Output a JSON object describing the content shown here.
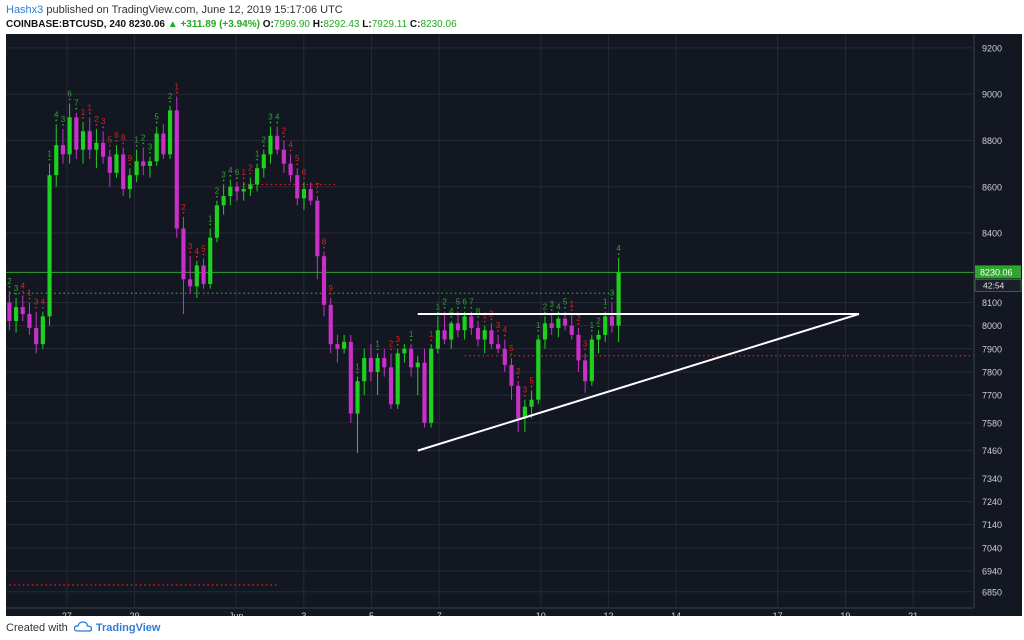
{
  "header": {
    "author": "Hashx3",
    "published_text": "published on TradingView.com, June 12, 2019 15:17:06 UTC",
    "symbol": "COINBASE:BTCUSD, 240",
    "last": "8230.06",
    "change_arrow": "▲",
    "change": "+311.89 (+3.94%)",
    "o_label": "O:",
    "o_value": "7999.90",
    "h_label": "H:",
    "h_value": "8292.43",
    "l_label": "L:",
    "l_value": "7929.11",
    "c_label": "C:",
    "c_value": "8230.06"
  },
  "footer": {
    "created_with": "Created with",
    "brand": "TradingView",
    "logo_icon": "tradingview-cloud-icon"
  },
  "colors": {
    "background": "#131722",
    "grid": "#252a36",
    "up": "#1fd11f",
    "down": "#c830c8",
    "td_up": "#2ea52e",
    "td_down": "#e02020",
    "price_line": "#2ea52e",
    "axis_text": "#d0d0d0",
    "trendline": "#ffffff"
  },
  "chart_data": {
    "type": "candlestick",
    "ylim": [
      6780,
      9260
    ],
    "y_ticks": [
      9200,
      9000,
      8800,
      8600,
      8400,
      8230,
      8100,
      8000,
      7900,
      7800,
      7700,
      7580,
      7460,
      7340,
      7240,
      7140,
      7040,
      6940,
      6850
    ],
    "x_ticks": [
      {
        "label": "27",
        "day": 27
      },
      {
        "label": "29",
        "day": 29
      },
      {
        "label": "Jun",
        "day": 32
      },
      {
        "label": "3",
        "day": 34
      },
      {
        "label": "5",
        "day": 36
      },
      {
        "label": "7",
        "day": 38
      },
      {
        "label": "10",
        "day": 41
      },
      {
        "label": "12",
        "day": 43
      },
      {
        "label": "14",
        "day": 45
      },
      {
        "label": "17",
        "day": 48
      },
      {
        "label": "19",
        "day": 50
      },
      {
        "label": "21",
        "day": 52
      }
    ],
    "x_range_days": [
      25.2,
      53.8
    ],
    "last_price_label": "8230.06",
    "countdown_label": "42:54",
    "candles": [
      [
        8100,
        8150,
        7980,
        8020
      ],
      [
        8020,
        8120,
        7970,
        8080
      ],
      [
        8080,
        8130,
        8020,
        8050
      ],
      [
        8050,
        8100,
        7960,
        7990
      ],
      [
        7990,
        8060,
        7880,
        7920
      ],
      [
        7920,
        8060,
        7900,
        8040
      ],
      [
        8040,
        8700,
        8000,
        8650
      ],
      [
        8650,
        8870,
        8600,
        8780
      ],
      [
        8780,
        8850,
        8700,
        8740
      ],
      [
        8740,
        8960,
        8700,
        8900
      ],
      [
        8900,
        8920,
        8720,
        8760
      ],
      [
        8760,
        8880,
        8700,
        8840
      ],
      [
        8840,
        8900,
        8720,
        8760
      ],
      [
        8760,
        8850,
        8680,
        8790
      ],
      [
        8790,
        8840,
        8700,
        8730
      ],
      [
        8730,
        8760,
        8600,
        8660
      ],
      [
        8660,
        8780,
        8640,
        8740
      ],
      [
        8740,
        8770,
        8560,
        8590
      ],
      [
        8590,
        8680,
        8550,
        8650
      ],
      [
        8650,
        8760,
        8620,
        8710
      ],
      [
        8710,
        8770,
        8650,
        8690
      ],
      [
        8690,
        8730,
        8640,
        8710
      ],
      [
        8710,
        8860,
        8690,
        8830
      ],
      [
        8830,
        8870,
        8720,
        8740
      ],
      [
        8740,
        8950,
        8720,
        8930
      ],
      [
        8930,
        8990,
        8380,
        8420
      ],
      [
        8420,
        8470,
        8050,
        8200
      ],
      [
        8200,
        8300,
        8140,
        8170
      ],
      [
        8170,
        8280,
        8120,
        8260
      ],
      [
        8260,
        8290,
        8160,
        8180
      ],
      [
        8180,
        8420,
        8160,
        8380
      ],
      [
        8380,
        8540,
        8360,
        8520
      ],
      [
        8520,
        8610,
        8480,
        8560
      ],
      [
        8560,
        8630,
        8520,
        8600
      ],
      [
        8600,
        8620,
        8540,
        8580
      ],
      [
        8580,
        8620,
        8540,
        8590
      ],
      [
        8590,
        8640,
        8560,
        8610
      ],
      [
        8610,
        8700,
        8580,
        8680
      ],
      [
        8680,
        8760,
        8640,
        8740
      ],
      [
        8740,
        8860,
        8700,
        8820
      ],
      [
        8820,
        8860,
        8740,
        8760
      ],
      [
        8760,
        8800,
        8660,
        8700
      ],
      [
        8700,
        8740,
        8620,
        8650
      ],
      [
        8650,
        8680,
        8520,
        8550
      ],
      [
        8550,
        8620,
        8500,
        8590
      ],
      [
        8590,
        8620,
        8520,
        8540
      ],
      [
        8540,
        8560,
        8200,
        8300
      ],
      [
        8300,
        8320,
        8040,
        8090
      ],
      [
        8090,
        8120,
        7880,
        7920
      ],
      [
        7920,
        7960,
        7840,
        7900
      ],
      [
        7900,
        7960,
        7880,
        7930
      ],
      [
        7930,
        7960,
        7580,
        7620
      ],
      [
        7620,
        7780,
        7450,
        7760
      ],
      [
        7760,
        7900,
        7700,
        7860
      ],
      [
        7860,
        7920,
        7760,
        7800
      ],
      [
        7800,
        7880,
        7700,
        7860
      ],
      [
        7860,
        7900,
        7780,
        7820
      ],
      [
        7820,
        7880,
        7640,
        7660
      ],
      [
        7660,
        7900,
        7640,
        7880
      ],
      [
        7880,
        7920,
        7840,
        7900
      ],
      [
        7900,
        7920,
        7780,
        7820
      ],
      [
        7820,
        7870,
        7700,
        7840
      ],
      [
        7840,
        7900,
        7560,
        7580
      ],
      [
        7580,
        7920,
        7560,
        7900
      ],
      [
        7900,
        8040,
        7880,
        7980
      ],
      [
        7980,
        8060,
        7920,
        7940
      ],
      [
        7940,
        8020,
        7900,
        8010
      ],
      [
        8010,
        8060,
        7950,
        7980
      ],
      [
        7980,
        8060,
        7940,
        8040
      ],
      [
        8040,
        8060,
        7960,
        7990
      ],
      [
        7990,
        8020,
        7910,
        7940
      ],
      [
        7940,
        8000,
        7880,
        7980
      ],
      [
        7980,
        8010,
        7900,
        7920
      ],
      [
        7920,
        7960,
        7880,
        7900
      ],
      [
        7900,
        7940,
        7800,
        7830
      ],
      [
        7830,
        7860,
        7680,
        7740
      ],
      [
        7740,
        7760,
        7540,
        7600
      ],
      [
        7600,
        7680,
        7540,
        7650
      ],
      [
        7650,
        7720,
        7600,
        7680
      ],
      [
        7680,
        7960,
        7660,
        7940
      ],
      [
        7940,
        8040,
        7900,
        8010
      ],
      [
        8010,
        8050,
        7960,
        7990
      ],
      [
        7990,
        8040,
        7950,
        8030
      ],
      [
        8030,
        8060,
        7980,
        8000
      ],
      [
        8000,
        8050,
        7940,
        7960
      ],
      [
        7960,
        7990,
        7800,
        7850
      ],
      [
        7850,
        7880,
        7710,
        7760
      ],
      [
        7760,
        7960,
        7740,
        7940
      ],
      [
        7940,
        7980,
        7880,
        7960
      ],
      [
        7960,
        8060,
        7930,
        8040
      ],
      [
        8040,
        8100,
        7970,
        8000
      ],
      [
        8000,
        8292,
        7929,
        8230
      ]
    ],
    "td_counts": [
      {
        "c": 0,
        "n": "2",
        "side": "up"
      },
      {
        "c": 1,
        "n": "3",
        "side": "up"
      },
      {
        "c": 2,
        "n": "4",
        "side": "down"
      },
      {
        "c": 3,
        "n": "1",
        "side": "down"
      },
      {
        "c": 4,
        "n": "3",
        "side": "down"
      },
      {
        "c": 5,
        "n": "4",
        "side": "down"
      },
      {
        "c": 6,
        "n": "1",
        "side": "up"
      },
      {
        "c": 7,
        "n": "4",
        "side": "up"
      },
      {
        "c": 8,
        "n": "3",
        "side": "up"
      },
      {
        "c": 9,
        "n": "6",
        "side": "up"
      },
      {
        "c": 10,
        "n": "7",
        "side": "up"
      },
      {
        "c": 11,
        "n": "1",
        "side": "down"
      },
      {
        "c": 12,
        "n": "1",
        "side": "down"
      },
      {
        "c": 13,
        "n": "2",
        "side": "down"
      },
      {
        "c": 14,
        "n": "3",
        "side": "down"
      },
      {
        "c": 15,
        "n": "5",
        "side": "down"
      },
      {
        "c": 16,
        "n": "6",
        "side": "down"
      },
      {
        "c": 17,
        "n": "8",
        "side": "down"
      },
      {
        "c": 18,
        "n": "9",
        "side": "down"
      },
      {
        "c": 19,
        "n": "1",
        "side": "up"
      },
      {
        "c": 20,
        "n": "2",
        "side": "up"
      },
      {
        "c": 21,
        "n": "3",
        "side": "up"
      },
      {
        "c": 22,
        "n": "5",
        "side": "up"
      },
      {
        "c": 24,
        "n": "2",
        "side": "up"
      },
      {
        "c": 25,
        "n": "1",
        "side": "down"
      },
      {
        "c": 26,
        "n": "2",
        "side": "down"
      },
      {
        "c": 27,
        "n": "3",
        "side": "down"
      },
      {
        "c": 28,
        "n": "4",
        "side": "down"
      },
      {
        "c": 29,
        "n": "5",
        "side": "down"
      },
      {
        "c": 30,
        "n": "1",
        "side": "up"
      },
      {
        "c": 31,
        "n": "2",
        "side": "up"
      },
      {
        "c": 32,
        "n": "3",
        "side": "up"
      },
      {
        "c": 33,
        "n": "4",
        "side": "up"
      },
      {
        "c": 34,
        "n": "6",
        "side": "up"
      },
      {
        "c": 35,
        "n": "1",
        "side": "down"
      },
      {
        "c": 36,
        "n": "2",
        "side": "down"
      },
      {
        "c": 37,
        "n": "1",
        "side": "up"
      },
      {
        "c": 38,
        "n": "2",
        "side": "up"
      },
      {
        "c": 39,
        "n": "3",
        "side": "up"
      },
      {
        "c": 40,
        "n": "4",
        "side": "up"
      },
      {
        "c": 41,
        "n": "2",
        "side": "down"
      },
      {
        "c": 42,
        "n": "4",
        "side": "down"
      },
      {
        "c": 43,
        "n": "5",
        "side": "down"
      },
      {
        "c": 44,
        "n": "6",
        "side": "down"
      },
      {
        "c": 46,
        "n": "7",
        "side": "down"
      },
      {
        "c": 47,
        "n": "8",
        "side": "down"
      },
      {
        "c": 48,
        "n": "9",
        "side": "down"
      },
      {
        "c": 52,
        "n": "1",
        "side": "up"
      },
      {
        "c": 55,
        "n": "1",
        "side": "up"
      },
      {
        "c": 57,
        "n": "2",
        "side": "down"
      },
      {
        "c": 58,
        "n": "3",
        "side": "down"
      },
      {
        "c": 60,
        "n": "1",
        "side": "up"
      },
      {
        "c": 63,
        "n": "1",
        "side": "down"
      },
      {
        "c": 64,
        "n": "1",
        "side": "up"
      },
      {
        "c": 65,
        "n": "2",
        "side": "up"
      },
      {
        "c": 66,
        "n": "4",
        "side": "up"
      },
      {
        "c": 67,
        "n": "5",
        "side": "up"
      },
      {
        "c": 68,
        "n": "6",
        "side": "up"
      },
      {
        "c": 69,
        "n": "7",
        "side": "up"
      },
      {
        "c": 70,
        "n": "8",
        "side": "up"
      },
      {
        "c": 71,
        "n": "1",
        "side": "down"
      },
      {
        "c": 72,
        "n": "2",
        "side": "down"
      },
      {
        "c": 73,
        "n": "3",
        "side": "down"
      },
      {
        "c": 74,
        "n": "4",
        "side": "down"
      },
      {
        "c": 75,
        "n": "5",
        "side": "down"
      },
      {
        "c": 76,
        "n": "2",
        "side": "down"
      },
      {
        "c": 77,
        "n": "3",
        "side": "down"
      },
      {
        "c": 78,
        "n": "5",
        "side": "down"
      },
      {
        "c": 79,
        "n": "1",
        "side": "up"
      },
      {
        "c": 80,
        "n": "2",
        "side": "up"
      },
      {
        "c": 81,
        "n": "3",
        "side": "up"
      },
      {
        "c": 82,
        "n": "4",
        "side": "up"
      },
      {
        "c": 83,
        "n": "5",
        "side": "up"
      },
      {
        "c": 84,
        "n": "1",
        "side": "down"
      },
      {
        "c": 85,
        "n": "2",
        "side": "down"
      },
      {
        "c": 86,
        "n": "3",
        "side": "down"
      },
      {
        "c": 87,
        "n": "1",
        "side": "up"
      },
      {
        "c": 88,
        "n": "2",
        "side": "up"
      },
      {
        "c": 89,
        "n": "1",
        "side": "up"
      },
      {
        "c": 90,
        "n": "3",
        "side": "up"
      },
      {
        "c": 91,
        "n": "4",
        "side": "up"
      }
    ],
    "resistance_line": {
      "price": 8050,
      "from_candle": 61,
      "to_day": 50.4
    },
    "support_line": {
      "from_candle": 61,
      "from_price": 7460,
      "to_day": 50.4,
      "to_price": 8050
    },
    "dotted_levels": [
      {
        "price": 8140,
        "from_candle": 0,
        "to_candle": 91,
        "color": "#2ea52e"
      },
      {
        "price": 8610,
        "from_candle": 35,
        "to_candle": 49,
        "color": "#e02020"
      },
      {
        "price": 7870,
        "from_candle": 68,
        "to_candle": 92,
        "color": "#e02020"
      },
      {
        "price": 6880,
        "from_candle": 0,
        "to_candle": 40,
        "color": "#e02020"
      }
    ]
  }
}
